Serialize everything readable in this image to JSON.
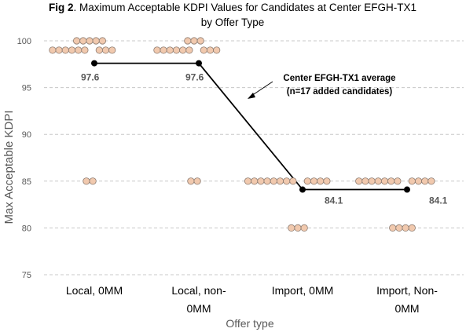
{
  "colors": {
    "background": "#ffffff",
    "grid": "#c8c8c8",
    "dot_fill": "#f1c9ae",
    "dot_stroke": "#8c7b70",
    "avg_line": "#000000",
    "avg_label": "#595959",
    "axis_text": "#595959",
    "title": "#000000"
  },
  "chart_data": {
    "type": "scatter",
    "title_prefix": "Fig 2",
    "title_line1": ". Maximum Acceptable KDPI Values for Candidates at Center EFGH-TX1",
    "title_line2": "by Offer Type",
    "xlabel": "Offer type",
    "ylabel": "Max Acceptable KDPI",
    "ylim": [
      75,
      100
    ],
    "yticks": [
      "75",
      "80",
      "85",
      "90",
      "95",
      "100"
    ],
    "grid": "horizontal dashed",
    "categories": [
      {
        "line1": "Local, 0MM",
        "line2": ""
      },
      {
        "line1": "Local, non-",
        "line2": "0MM"
      },
      {
        "line1": "Import, 0MM",
        "line2": ""
      },
      {
        "line1": "Import, Non-",
        "line2": "0MM"
      }
    ],
    "individual_values": [
      [
        100,
        100,
        100,
        100,
        100,
        99,
        99,
        99,
        99,
        99,
        99,
        99,
        99,
        99,
        85,
        85
      ],
      [
        100,
        100,
        100,
        99,
        99,
        99,
        99,
        99,
        99,
        99,
        99,
        99,
        85,
        85
      ],
      [
        85,
        85,
        85,
        85,
        85,
        85,
        85,
        85,
        85,
        85,
        85,
        85,
        80,
        80,
        80
      ],
      [
        85,
        85,
        85,
        85,
        85,
        85,
        85,
        85,
        85,
        85,
        85,
        80,
        80,
        80,
        80
      ]
    ],
    "series": [
      {
        "name": "Center EFGH-TX1 average",
        "values": [
          97.6,
          97.6,
          84.1,
          84.1
        ]
      }
    ],
    "avg_labels": [
      "97.6",
      "97.6",
      "84.1",
      "84.1"
    ],
    "annotation": {
      "line1": "Center EFGH-TX1 average",
      "line2": "(n=17 added candidates)"
    }
  }
}
